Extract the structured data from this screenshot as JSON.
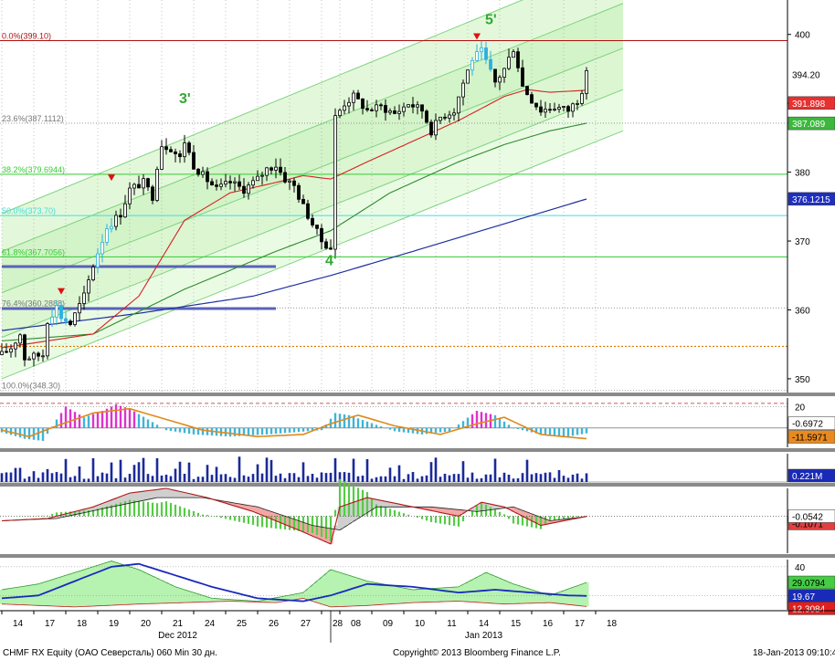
{
  "footer": {
    "left": "CHMF RX Equity (OAO Северсталь) 060 Min 30 дн.",
    "center": "Copyright© 2013 Bloomberg Finance L.P.",
    "right": "18-Jan-2013 09:10:49"
  },
  "colors": {
    "price": "#000000",
    "ma_fast": "#d62020",
    "ma_mid": "#2e8b2e",
    "ma_slow": "#1f2f9f",
    "channel_fill": "#d8f5cc",
    "channel_line": "#7ed37e",
    "fib_green": "#33cc33",
    "fib_cyan": "#44dddd",
    "fib_red": "#b01010",
    "fib_orange": "#e07800",
    "support_band": "#5a62b8",
    "wave_label": "#33a833",
    "hist_cyan": "#3fb4d8",
    "hist_magenta": "#dd33cc",
    "hist_signal": "#e08a1a",
    "volume": "#1a2a9a",
    "macd_hist": "#55cc44",
    "macd_fill_red": "#f08080",
    "macd_fill_grey": "#bbbbbb",
    "dmi_fill": "#b6f2b0",
    "dmi_red": "#f0a0a0",
    "dmi_blue": "#1a2aba"
  },
  "chart_data": {
    "type": "candlestick",
    "ticker": "CHMF RX Equity",
    "main_ylim": [
      348,
      405
    ],
    "x_labels": [
      "14",
      "17",
      "18",
      "19",
      "20",
      "21",
      "24",
      "25",
      "26",
      "27",
      "28",
      "08",
      "09",
      "10",
      "11",
      "14",
      "15",
      "16",
      "17",
      "18"
    ],
    "month_labels": [
      {
        "text": "Dec 2012",
        "at_label": "21"
      },
      {
        "text": "Jan 2013",
        "at_label": "14"
      }
    ],
    "y_ticks": [
      350,
      360,
      370,
      380,
      390,
      400
    ],
    "close_path": [
      {
        "i": 0,
        "v": 353.5
      },
      {
        "i": 2,
        "v": 354.5
      },
      {
        "i": 4,
        "v": 356.5
      },
      {
        "i": 5,
        "v": 353.0
      },
      {
        "i": 9,
        "v": 353.5
      },
      {
        "i": 10,
        "v": 358.5
      },
      {
        "i": 12,
        "v": 360.5
      },
      {
        "i": 13,
        "v": 359.0
      },
      {
        "i": 15,
        "v": 358.0
      },
      {
        "i": 18,
        "v": 362.0
      },
      {
        "i": 20,
        "v": 366.5
      },
      {
        "i": 23,
        "v": 372.0
      },
      {
        "i": 26,
        "v": 374.0
      },
      {
        "i": 28,
        "v": 377.5
      },
      {
        "i": 31,
        "v": 378.5
      },
      {
        "i": 33,
        "v": 376.5
      },
      {
        "i": 34,
        "v": 381.0
      },
      {
        "i": 35,
        "v": 384.0
      },
      {
        "i": 37,
        "v": 383.5
      },
      {
        "i": 39,
        "v": 382.0
      },
      {
        "i": 40,
        "v": 384.5
      },
      {
        "i": 42,
        "v": 381.0
      },
      {
        "i": 44,
        "v": 379.5
      },
      {
        "i": 47,
        "v": 377.5
      },
      {
        "i": 50,
        "v": 378.5
      },
      {
        "i": 53,
        "v": 377.5
      },
      {
        "i": 56,
        "v": 379.0
      },
      {
        "i": 58,
        "v": 380.5
      },
      {
        "i": 60,
        "v": 381.0
      },
      {
        "i": 62,
        "v": 379.0
      },
      {
        "i": 64,
        "v": 378.0
      },
      {
        "i": 66,
        "v": 375.0
      },
      {
        "i": 68,
        "v": 372.5
      },
      {
        "i": 70,
        "v": 370.0
      },
      {
        "i": 72,
        "v": 369.0
      },
      {
        "i": 73,
        "v": 388.0
      },
      {
        "i": 75,
        "v": 390.0
      },
      {
        "i": 77,
        "v": 391.0
      },
      {
        "i": 80,
        "v": 389.0
      },
      {
        "i": 83,
        "v": 389.5
      },
      {
        "i": 86,
        "v": 388.5
      },
      {
        "i": 89,
        "v": 390.0
      },
      {
        "i": 92,
        "v": 389.0
      },
      {
        "i": 94,
        "v": 386.0
      },
      {
        "i": 96,
        "v": 388.0
      },
      {
        "i": 99,
        "v": 389.0
      },
      {
        "i": 101,
        "v": 393.0
      },
      {
        "i": 103,
        "v": 396.5
      },
      {
        "i": 105,
        "v": 397.5
      },
      {
        "i": 106,
        "v": 396.0
      },
      {
        "i": 108,
        "v": 393.0
      },
      {
        "i": 110,
        "v": 395.0
      },
      {
        "i": 112,
        "v": 398.0
      },
      {
        "i": 113,
        "v": 395.5
      },
      {
        "i": 114,
        "v": 392.5
      },
      {
        "i": 116,
        "v": 390.5
      },
      {
        "i": 118,
        "v": 389.0
      },
      {
        "i": 121,
        "v": 389.5
      },
      {
        "i": 124,
        "v": 389.0
      },
      {
        "i": 126,
        "v": 390.5
      },
      {
        "i": 127,
        "v": 392.0
      },
      {
        "i": 128,
        "v": 394.2
      }
    ],
    "series": [
      {
        "name": "Last",
        "last": 394.2
      },
      {
        "name": "MA fast",
        "last": 391.898
      },
      {
        "name": "MA mid",
        "last": 387.089
      },
      {
        "name": "MA slow",
        "last": 376.1215
      }
    ],
    "ma_fast": [
      {
        "i": 0,
        "v": 354.5
      },
      {
        "i": 20,
        "v": 356.5
      },
      {
        "i": 30,
        "v": 362.0
      },
      {
        "i": 40,
        "v": 373.0
      },
      {
        "i": 50,
        "v": 377.0
      },
      {
        "i": 60,
        "v": 378.5
      },
      {
        "i": 66,
        "v": 379.5
      },
      {
        "i": 72,
        "v": 379.0
      },
      {
        "i": 80,
        "v": 381.5
      },
      {
        "i": 90,
        "v": 384.5
      },
      {
        "i": 100,
        "v": 387.5
      },
      {
        "i": 110,
        "v": 391.0
      },
      {
        "i": 115,
        "v": 392.0
      },
      {
        "i": 120,
        "v": 391.6
      },
      {
        "i": 128,
        "v": 391.9
      }
    ],
    "ma_mid": [
      {
        "i": 0,
        "v": 355.5
      },
      {
        "i": 20,
        "v": 356.5
      },
      {
        "i": 40,
        "v": 363.0
      },
      {
        "i": 60,
        "v": 368.5
      },
      {
        "i": 72,
        "v": 371.5
      },
      {
        "i": 85,
        "v": 377.0
      },
      {
        "i": 100,
        "v": 381.5
      },
      {
        "i": 110,
        "v": 384.0
      },
      {
        "i": 120,
        "v": 386.0
      },
      {
        "i": 128,
        "v": 387.1
      }
    ],
    "ma_slow": [
      {
        "i": 0,
        "v": 357.0
      },
      {
        "i": 30,
        "v": 359.5
      },
      {
        "i": 55,
        "v": 362.0
      },
      {
        "i": 72,
        "v": 365.0
      },
      {
        "i": 90,
        "v": 368.5
      },
      {
        "i": 110,
        "v": 372.5
      },
      {
        "i": 128,
        "v": 376.1
      }
    ],
    "fibonacci": [
      {
        "label": "0.0%(399.10)",
        "value": 399.1,
        "color": "#b01010"
      },
      {
        "label": "23.6%(387.1112)",
        "value": 387.1112,
        "color": "#888888"
      },
      {
        "label": "38.2%(379.6944)",
        "value": 379.6944,
        "color": "#33cc33"
      },
      {
        "label": "50.0%(373.70)",
        "value": 373.7,
        "color": "#44dddd"
      },
      {
        "label": "61.8%(367.7056)",
        "value": 367.7056,
        "color": "#33cc33"
      },
      {
        "label": "76.4%(360.2888)",
        "value": 360.2888,
        "color": "#888888"
      },
      {
        "label": "100.0%(348.30)",
        "value": 348.3,
        "color": "#888888"
      }
    ],
    "extra_levels": [
      {
        "value": 354.7,
        "color": "#e07800"
      }
    ],
    "support_bands": [
      {
        "value": 366.3,
        "from_i": 0,
        "to_i": 60
      },
      {
        "value": 360.2,
        "from_i": 0,
        "to_i": 60
      }
    ],
    "channel": {
      "lines": [
        [
          {
            "i": 0,
            "v": 362.5
          },
          {
            "i": 136,
            "v": 398.0
          }
        ],
        [
          {
            "i": 0,
            "v": 368.5
          },
          {
            "i": 136,
            "v": 404.5
          }
        ],
        [
          {
            "i": 0,
            "v": 374.0
          },
          {
            "i": 136,
            "v": 411.0
          }
        ],
        [
          {
            "i": 0,
            "v": 356.0
          },
          {
            "i": 136,
            "v": 392.0
          }
        ],
        [
          {
            "i": 0,
            "v": 350.0
          },
          {
            "i": 136,
            "v": 386.0
          }
        ]
      ]
    },
    "wave_labels": [
      {
        "text": "3'",
        "i": 40,
        "v": 390.0
      },
      {
        "text": "4'",
        "i": 72,
        "v": 366.5
      },
      {
        "text": "5'",
        "i": 107,
        "v": 401.5
      }
    ],
    "markers": [
      {
        "i": 13,
        "v": 362.5
      },
      {
        "i": 24,
        "v": 379.0
      },
      {
        "i": 104,
        "v": 399.5
      }
    ],
    "oscillator": {
      "ylim": [
        -18,
        28
      ],
      "ticks": [
        20
      ],
      "levels": [
        23,
        20
      ],
      "last_values": [
        -0.6972,
        -11.5971
      ],
      "series": [
        {
          "name": "hist",
          "points": [
            {
              "i": 0,
              "v": -4
            },
            {
              "i": 5,
              "v": -10
            },
            {
              "i": 9,
              "v": -12
            },
            {
              "i": 12,
              "v": 8
            },
            {
              "i": 14,
              "v": 20
            },
            {
              "i": 18,
              "v": 10
            },
            {
              "i": 22,
              "v": 16
            },
            {
              "i": 25,
              "v": 22
            },
            {
              "i": 28,
              "v": 18
            },
            {
              "i": 32,
              "v": 8
            },
            {
              "i": 36,
              "v": -2
            },
            {
              "i": 42,
              "v": -6
            },
            {
              "i": 50,
              "v": -8
            },
            {
              "i": 58,
              "v": -6
            },
            {
              "i": 64,
              "v": -4
            },
            {
              "i": 70,
              "v": -2
            },
            {
              "i": 73,
              "v": 14
            },
            {
              "i": 76,
              "v": 12
            },
            {
              "i": 80,
              "v": 6
            },
            {
              "i": 86,
              "v": -3
            },
            {
              "i": 92,
              "v": -6
            },
            {
              "i": 98,
              "v": -3
            },
            {
              "i": 104,
              "v": 16
            },
            {
              "i": 108,
              "v": 12
            },
            {
              "i": 112,
              "v": 0
            },
            {
              "i": 118,
              "v": -6
            },
            {
              "i": 124,
              "v": -8
            },
            {
              "i": 128,
              "v": -5
            }
          ]
        },
        {
          "name": "signal",
          "points": [
            {
              "i": 0,
              "v": -2
            },
            {
              "i": 6,
              "v": -8
            },
            {
              "i": 12,
              "v": 2
            },
            {
              "i": 20,
              "v": 14
            },
            {
              "i": 28,
              "v": 18
            },
            {
              "i": 36,
              "v": 8
            },
            {
              "i": 44,
              "v": -2
            },
            {
              "i": 56,
              "v": -8
            },
            {
              "i": 66,
              "v": -6
            },
            {
              "i": 72,
              "v": 4
            },
            {
              "i": 78,
              "v": 12
            },
            {
              "i": 86,
              "v": 2
            },
            {
              "i": 96,
              "v": -6
            },
            {
              "i": 104,
              "v": 4
            },
            {
              "i": 110,
              "v": 10
            },
            {
              "i": 118,
              "v": -6
            },
            {
              "i": 128,
              "v": -10
            }
          ]
        }
      ]
    },
    "volume": {
      "last_label": "0.221M"
    },
    "macd": {
      "ylim": [
        -8,
        6
      ],
      "last_values": [
        -0.0542,
        -0.1071
      ],
      "series": [
        {
          "name": "macd",
          "points": [
            {
              "i": 0,
              "v": -1
            },
            {
              "i": 10,
              "v": -0.5
            },
            {
              "i": 20,
              "v": 2
            },
            {
              "i": 28,
              "v": 5
            },
            {
              "i": 36,
              "v": 6
            },
            {
              "i": 45,
              "v": 4
            },
            {
              "i": 55,
              "v": 1
            },
            {
              "i": 65,
              "v": -3
            },
            {
              "i": 72,
              "v": -6
            },
            {
              "i": 74,
              "v": 2
            },
            {
              "i": 80,
              "v": 4
            },
            {
              "i": 90,
              "v": 2
            },
            {
              "i": 100,
              "v": 0
            },
            {
              "i": 105,
              "v": 3
            },
            {
              "i": 110,
              "v": 2
            },
            {
              "i": 118,
              "v": -2
            },
            {
              "i": 128,
              "v": -0.05
            }
          ]
        },
        {
          "name": "signal",
          "points": [
            {
              "i": 0,
              "v": -1
            },
            {
              "i": 12,
              "v": -0.5
            },
            {
              "i": 24,
              "v": 2
            },
            {
              "i": 34,
              "v": 4
            },
            {
              "i": 44,
              "v": 4
            },
            {
              "i": 56,
              "v": 2
            },
            {
              "i": 68,
              "v": -2
            },
            {
              "i": 74,
              "v": -3
            },
            {
              "i": 82,
              "v": 2
            },
            {
              "i": 94,
              "v": 2
            },
            {
              "i": 104,
              "v": 1
            },
            {
              "i": 112,
              "v": 2
            },
            {
              "i": 120,
              "v": -1
            },
            {
              "i": 128,
              "v": -0.1
            }
          ]
        }
      ]
    },
    "dmi": {
      "ylim": [
        10,
        45
      ],
      "ticks": [
        40,
        20
      ],
      "last_values": [
        29.0794,
        19.67,
        12.3084
      ],
      "series": [
        {
          "name": "upper",
          "points": [
            {
              "i": 0,
              "v": 24
            },
            {
              "i": 8,
              "v": 28
            },
            {
              "i": 16,
              "v": 36
            },
            {
              "i": 24,
              "v": 44
            },
            {
              "i": 30,
              "v": 38
            },
            {
              "i": 38,
              "v": 26
            },
            {
              "i": 46,
              "v": 18
            },
            {
              "i": 56,
              "v": 16
            },
            {
              "i": 66,
              "v": 22
            },
            {
              "i": 72,
              "v": 38
            },
            {
              "i": 80,
              "v": 30
            },
            {
              "i": 90,
              "v": 24
            },
            {
              "i": 100,
              "v": 26
            },
            {
              "i": 106,
              "v": 36
            },
            {
              "i": 112,
              "v": 28
            },
            {
              "i": 120,
              "v": 20
            },
            {
              "i": 128,
              "v": 29
            }
          ]
        },
        {
          "name": "lower",
          "points": [
            {
              "i": 0,
              "v": 14
            },
            {
              "i": 8,
              "v": 13
            },
            {
              "i": 16,
              "v": 12
            },
            {
              "i": 30,
              "v": 14
            },
            {
              "i": 40,
              "v": 15
            },
            {
              "i": 50,
              "v": 16
            },
            {
              "i": 60,
              "v": 15
            },
            {
              "i": 66,
              "v": 18
            },
            {
              "i": 72,
              "v": 12
            },
            {
              "i": 80,
              "v": 13
            },
            {
              "i": 90,
              "v": 15
            },
            {
              "i": 100,
              "v": 16
            },
            {
              "i": 110,
              "v": 14
            },
            {
              "i": 120,
              "v": 15
            },
            {
              "i": 128,
              "v": 12.3
            }
          ]
        },
        {
          "name": "adx",
          "points": [
            {
              "i": 0,
              "v": 18
            },
            {
              "i": 8,
              "v": 20
            },
            {
              "i": 16,
              "v": 30
            },
            {
              "i": 24,
              "v": 40
            },
            {
              "i": 30,
              "v": 42
            },
            {
              "i": 38,
              "v": 34
            },
            {
              "i": 46,
              "v": 26
            },
            {
              "i": 56,
              "v": 18
            },
            {
              "i": 66,
              "v": 16
            },
            {
              "i": 72,
              "v": 20
            },
            {
              "i": 80,
              "v": 28
            },
            {
              "i": 90,
              "v": 26
            },
            {
              "i": 100,
              "v": 22
            },
            {
              "i": 108,
              "v": 24
            },
            {
              "i": 116,
              "v": 22
            },
            {
              "i": 124,
              "v": 20
            },
            {
              "i": 128,
              "v": 19.7
            }
          ]
        }
      ]
    }
  }
}
